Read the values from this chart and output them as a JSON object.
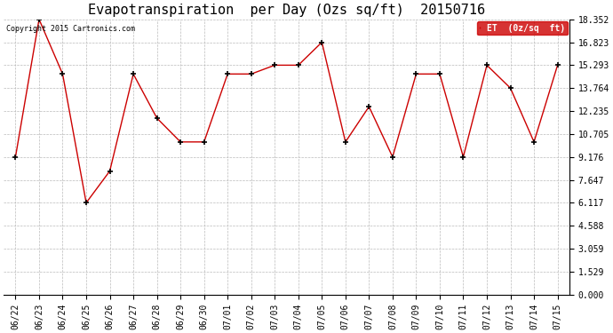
{
  "title": "Evapotranspiration  per Day (Ozs sq/ft)  20150716",
  "copyright": "Copyright 2015 Cartronics.com",
  "legend_label": "ET  (0z/sq  ft)",
  "x_labels": [
    "06/22",
    "06/23",
    "06/24",
    "06/25",
    "06/26",
    "06/27",
    "06/28",
    "06/29",
    "06/30",
    "07/01",
    "07/02",
    "07/03",
    "07/04",
    "07/05",
    "07/06",
    "07/07",
    "07/08",
    "07/09",
    "07/10",
    "07/11",
    "07/12",
    "07/13",
    "07/14",
    "07/15"
  ],
  "y_values": [
    9.176,
    18.352,
    14.705,
    6.117,
    8.235,
    14.705,
    11.764,
    10.176,
    10.176,
    14.705,
    14.705,
    15.293,
    15.293,
    16.823,
    10.176,
    12.529,
    9.176,
    14.705,
    14.705,
    9.176,
    15.293,
    13.764,
    10.176,
    15.293
  ],
  "y_ticks": [
    0.0,
    1.529,
    3.059,
    4.588,
    6.117,
    7.647,
    9.176,
    10.705,
    12.235,
    13.764,
    15.293,
    16.823,
    18.352
  ],
  "y_min": 0.0,
  "y_max": 18.352,
  "line_color": "#cc0000",
  "background_color": "#ffffff",
  "grid_color": "#bbbbbb",
  "title_fontsize": 11,
  "copyright_fontsize": 6,
  "tick_fontsize": 7,
  "legend_bg": "#cc0000",
  "legend_text_color": "#ffffff",
  "legend_fontsize": 7,
  "fig_width": 6.9,
  "fig_height": 3.75,
  "dpi": 100
}
